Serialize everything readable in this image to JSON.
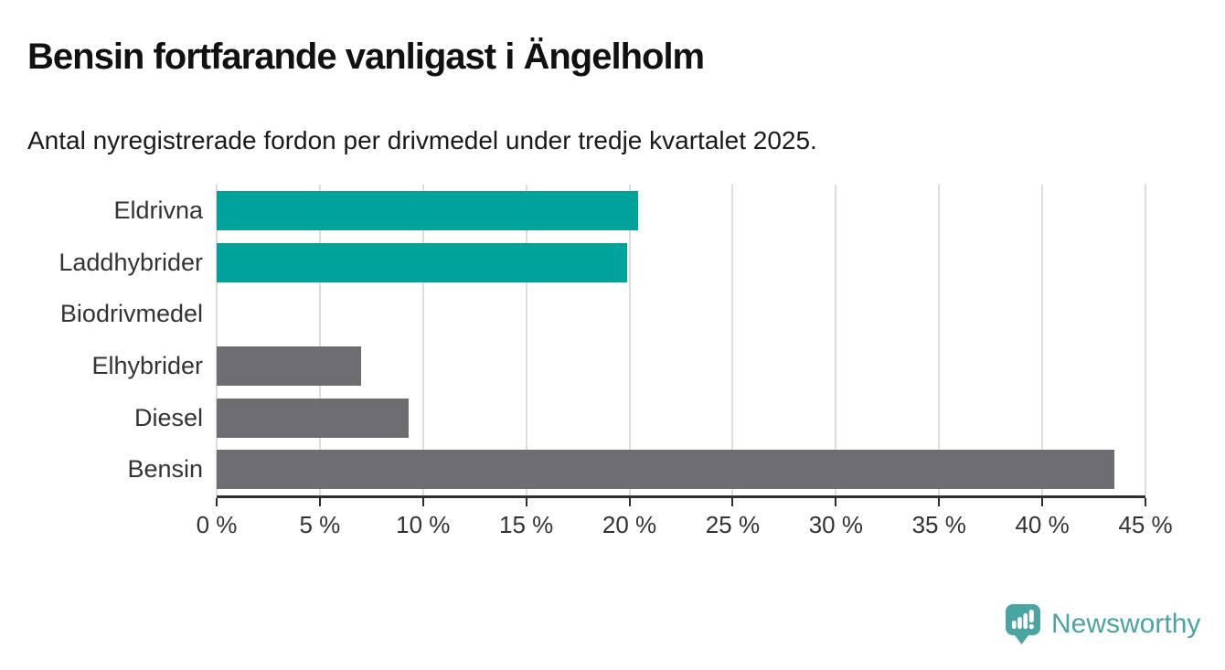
{
  "header": {
    "title": "Bensin fortfarande vanligast i Ängelholm",
    "subtitle": "Antal nyregistrerade fordon per drivmedel under tredje kvartalet 2025."
  },
  "chart_data": {
    "type": "bar",
    "orientation": "horizontal",
    "title": "Bensin fortfarande vanligast i Ängelholm",
    "subtitle": "Antal nyregistrerade fordon per drivmedel under tredje kvartalet 2025.",
    "categories": [
      "Eldrivna",
      "Laddhybrider",
      "Biodrivmedel",
      "Elhybrider",
      "Diesel",
      "Bensin"
    ],
    "values": [
      20.4,
      19.9,
      0,
      7.0,
      9.3,
      43.5
    ],
    "unit": "%",
    "bar_colors": [
      "#00a39b",
      "#00a39b",
      "#6d6d72",
      "#6d6d72",
      "#6d6d72",
      "#6d6d72"
    ],
    "xlabel": "",
    "ylabel": "",
    "xlim": [
      0,
      45
    ],
    "x_ticks": [
      0,
      5,
      10,
      15,
      20,
      25,
      30,
      35,
      40,
      45
    ],
    "x_tick_labels": [
      "0 %",
      "5 %",
      "10 %",
      "15 %",
      "20 %",
      "25 %",
      "30 %",
      "35 %",
      "40 %",
      "45 %"
    ],
    "grid": "vertical-on",
    "legend": "none"
  },
  "branding": {
    "name": "Newsworthy",
    "logo_icon": "newsworthy-speech-bubble-chart-icon",
    "color": "#4aa4a2"
  },
  "colors": {
    "highlight_bar": "#00a39b",
    "default_bar": "#6d6d72",
    "grid": "#dddddd",
    "axis": "#2e2e2e",
    "text": "#1a1a1a",
    "label_text": "#333333"
  }
}
